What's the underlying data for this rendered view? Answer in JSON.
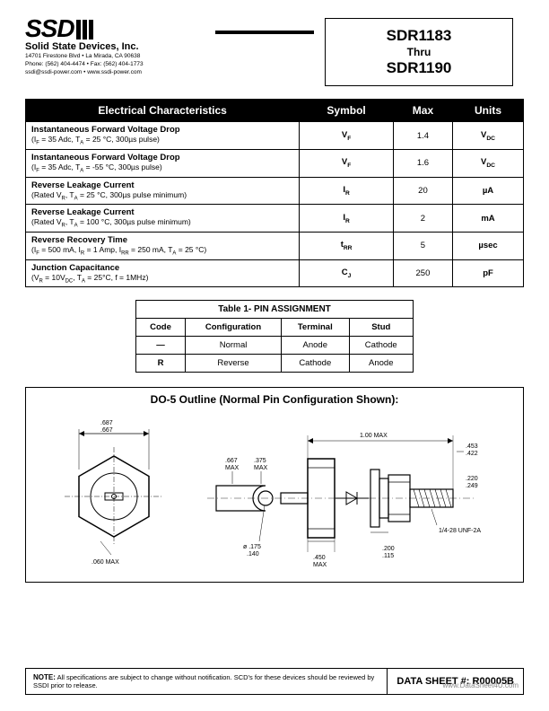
{
  "header": {
    "logo_text": "SSDI",
    "company": "Solid State Devices, Inc.",
    "address_line1": "14701 Firestone Blvd • La Mirada, CA 90638",
    "address_line2": "Phone: (562) 404-4474 • Fax: (562) 404-1773",
    "address_line3": "ssdi@ssdi-power.com • www.ssdi-power.com",
    "part_top": "SDR1183",
    "part_thru": "Thru",
    "part_bottom": "SDR1190"
  },
  "ec_table": {
    "headers": [
      "Electrical Characteristics",
      "Symbol",
      "Max",
      "Units"
    ],
    "rows": [
      {
        "title": "Instantaneous Forward Voltage Drop",
        "cond": "(I_F = 35 Adc, T_A = 25 °C, 300µs pulse)",
        "sym": "V_F",
        "max": "1.4",
        "unit": "V_DC"
      },
      {
        "title": "Instantaneous Forward Voltage Drop",
        "cond": "(I_F = 35 Adc, T_A = -55 °C, 300µs pulse)",
        "sym": "V_F",
        "max": "1.6",
        "unit": "V_DC"
      },
      {
        "title": "Reverse Leakage Current",
        "cond": "(Rated V_R, T_A = 25 °C, 300µs pulse minimum)",
        "sym": "I_R",
        "max": "20",
        "unit": "µA"
      },
      {
        "title": "Reverse Leakage Current",
        "cond": "(Rated V_R, T_A = 100 °C, 300µs pulse minimum)",
        "sym": "I_R",
        "max": "2",
        "unit": "mA"
      },
      {
        "title": "Reverse Recovery Time",
        "cond": "(I_F = 500 mA, I_R = 1 Amp, I_RR = 250 mA, T_A = 25 °C)",
        "sym": "t_RR",
        "max": "5",
        "unit": "µsec"
      },
      {
        "title": "Junction Capacitance",
        "cond": "(V_R = 10V_DC, T_A = 25°C, f = 1MHz)",
        "sym": "C_J",
        "max": "250",
        "unit": "pF"
      }
    ]
  },
  "pin_table": {
    "title": "Table 1- PIN ASSIGNMENT",
    "headers": [
      "Code",
      "Configuration",
      "Terminal",
      "Stud"
    ],
    "rows": [
      {
        "code": "—",
        "config": "Normal",
        "terminal": "Anode",
        "stud": "Cathode"
      },
      {
        "code": "R",
        "config": "Reverse",
        "terminal": "Cathode",
        "stud": "Anode"
      }
    ]
  },
  "outline": {
    "title": "DO-5  Outline (Normal Pin Configuration Shown):",
    "dims": {
      "hex_od1": ".687",
      "hex_od2": ".667",
      "hex_flat": ".060 MAX",
      "body_len": "1.00 MAX",
      "lug_l1": ".667",
      "lug_l2": ".375",
      "lug_hole1": "ø .175",
      "lug_hole2": ".140",
      "stud_d1": ".453",
      "stud_d2": ".422",
      "nut_h1": ".220",
      "nut_h2": ".249",
      "thread": "1/4-28 UNF-2A",
      "base_l1": ".200",
      "base_l2": ".115",
      "base_w": ".450"
    }
  },
  "footer": {
    "note_label": "NOTE:",
    "note_text": "All specifications are subject to change without notification. SCD's for these devices should be reviewed by SSDI prior to release.",
    "datasheet": "DATA SHEET #: R00005B",
    "watermark": "www.DataSheet4U.com"
  }
}
